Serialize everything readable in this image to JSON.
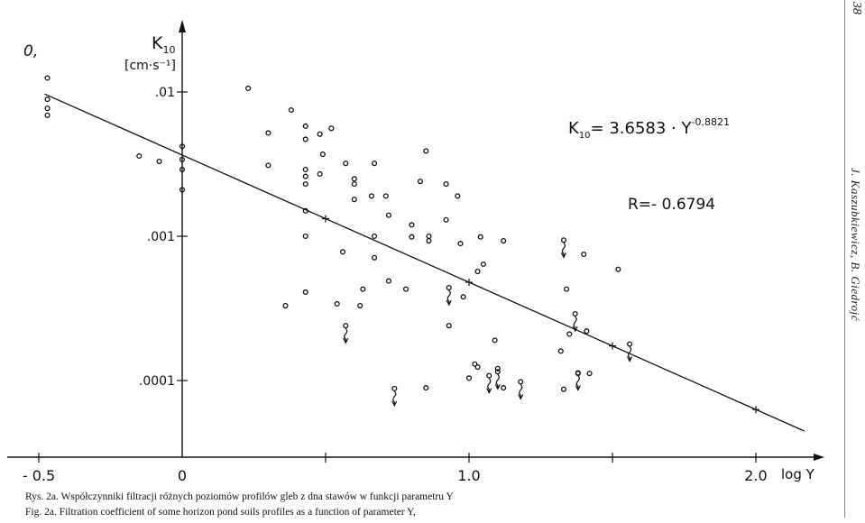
{
  "page": {
    "corner_mark": "0,",
    "page_number": "38",
    "running_head": "J. Kaszubkiewicz, B. Giedrojć"
  },
  "caption": {
    "polish": "Rys. 2a. Współczynniki filtracji różnych poziomów profilów gleb z dna stawów w funkcji parametru Y",
    "english": "Fig. 2a. Filtration coefficient of some horizon pond soils profiles as a function of parameter Y,"
  },
  "chart_data": {
    "type": "scatter",
    "title": "",
    "xlabel": "log Y",
    "ylabel_main": "K",
    "ylabel_sub": "10",
    "ylabel_unit": "[cm·s⁻¹]",
    "x_scale": "linear (log Y)",
    "y_scale": "log",
    "xlim": [
      -0.52,
      2.17
    ],
    "ylim_log10": [
      -4.9,
      -1.55
    ],
    "x_ticks": [
      {
        "value": -0.5,
        "label": "- 0.5"
      },
      {
        "value": 0,
        "label": "0"
      },
      {
        "value": 0.5,
        "label": ""
      },
      {
        "value": 1.0,
        "label": "1.0"
      },
      {
        "value": 1.5,
        "label": ""
      },
      {
        "value": 2.0,
        "label": "2.0"
      }
    ],
    "y_ticks": [
      {
        "log10": -2,
        "label": ".01"
      },
      {
        "log10": -3,
        "label": ".001"
      },
      {
        "log10": -4,
        "label": ".0001"
      }
    ],
    "grid": false,
    "legend": "none",
    "equation": {
      "base": "K",
      "sub": "10",
      "body": "= 3.6583 · Y",
      "exponent": "-0.8821"
    },
    "correlation": "R=- 0.6794",
    "regression_line": {
      "intercept_log10": -2.437,
      "slope": -0.8821,
      "x_from": -0.48,
      "x_to": 2.17
    },
    "line_markers_x": [
      0.5,
      1.0,
      1.5,
      2.0
    ],
    "points": [
      {
        "x": -0.47,
        "y": 0.0125
      },
      {
        "x": -0.47,
        "y": 0.0089
      },
      {
        "x": -0.47,
        "y": 0.0077
      },
      {
        "x": -0.47,
        "y": 0.0069
      },
      {
        "x": -0.15,
        "y": 0.0036
      },
      {
        "x": -0.08,
        "y": 0.0033
      },
      {
        "x": 0,
        "y": 0.0042
      },
      {
        "x": 0,
        "y": 0.0034
      },
      {
        "x": 0,
        "y": 0.0029
      },
      {
        "x": 0,
        "y": 0.0021
      },
      {
        "x": 0.23,
        "y": 0.0106
      },
      {
        "x": 0.3,
        "y": 0.0052
      },
      {
        "x": 0.3,
        "y": 0.0031
      },
      {
        "x": 0.38,
        "y": 0.0075
      },
      {
        "x": 0.43,
        "y": 0.0058
      },
      {
        "x": 0.43,
        "y": 0.0047
      },
      {
        "x": 0.43,
        "y": 0.0029
      },
      {
        "x": 0.43,
        "y": 0.0026
      },
      {
        "x": 0.43,
        "y": 0.0023
      },
      {
        "x": 0.43,
        "y": 0.0015
      },
      {
        "x": 0.43,
        "y": 0.001
      },
      {
        "x": 0.43,
        "y": 0.00041
      },
      {
        "x": 0.48,
        "y": 0.0051
      },
      {
        "x": 0.48,
        "y": 0.0027
      },
      {
        "x": 0.49,
        "y": 0.0037
      },
      {
        "x": 0.52,
        "y": 0.0056
      },
      {
        "x": 0.57,
        "y": 0.0032
      },
      {
        "x": 0.6,
        "y": 0.0025
      },
      {
        "x": 0.6,
        "y": 0.0023
      },
      {
        "x": 0.6,
        "y": 0.0018
      },
      {
        "x": 0.56,
        "y": 0.00078
      },
      {
        "x": 0.54,
        "y": 0.00034
      },
      {
        "x": 0.36,
        "y": 0.00033
      },
      {
        "x": 0.62,
        "y": 0.00033
      },
      {
        "x": 0.63,
        "y": 0.00043
      },
      {
        "x": 0.67,
        "y": 0.0032
      },
      {
        "x": 0.66,
        "y": 0.0019
      },
      {
        "x": 0.67,
        "y": 0.001
      },
      {
        "x": 0.67,
        "y": 0.00071
      },
      {
        "x": 0.71,
        "y": 0.0019
      },
      {
        "x": 0.72,
        "y": 0.0014
      },
      {
        "x": 0.72,
        "y": 0.00049
      },
      {
        "x": 0.78,
        "y": 0.00043
      },
      {
        "x": 0.8,
        "y": 0.0012
      },
      {
        "x": 0.8,
        "y": 0.00099
      },
      {
        "x": 0.83,
        "y": 0.0024
      },
      {
        "x": 0.85,
        "y": 0.0039
      },
      {
        "x": 0.86,
        "y": 0.001
      },
      {
        "x": 0.86,
        "y": 0.00093
      },
      {
        "x": 0.92,
        "y": 0.0023
      },
      {
        "x": 0.92,
        "y": 0.0013
      },
      {
        "x": 0.96,
        "y": 0.0019
      },
      {
        "x": 0.97,
        "y": 0.00089
      },
      {
        "x": 0.98,
        "y": 0.00038
      },
      {
        "x": 0.93,
        "y": 0.00024
      },
      {
        "x": 1.03,
        "y": 0.00057
      },
      {
        "x": 1.05,
        "y": 0.00064
      },
      {
        "x": 1.04,
        "y": 0.00099
      },
      {
        "x": 1.12,
        "y": 0.00093
      },
      {
        "x": 1.09,
        "y": 0.00019
      },
      {
        "x": 1.0,
        "y": 0.000104
      },
      {
        "x": 1.02,
        "y": 0.00013
      },
      {
        "x": 1.03,
        "y": 0.000124
      },
      {
        "x": 0.85,
        "y": 8.9e-05
      },
      {
        "x": 1.1,
        "y": 0.000121
      },
      {
        "x": 1.12,
        "y": 8.9e-05
      },
      {
        "x": 1.34,
        "y": 0.00043
      },
      {
        "x": 1.35,
        "y": 0.00021
      },
      {
        "x": 1.32,
        "y": 0.00016
      },
      {
        "x": 1.41,
        "y": 0.00022
      },
      {
        "x": 1.38,
        "y": 0.000112
      },
      {
        "x": 1.42,
        "y": 0.000112
      },
      {
        "x": 1.4,
        "y": 0.00075
      },
      {
        "x": 1.52,
        "y": 0.00059
      },
      {
        "x": 1.33,
        "y": 8.7e-05
      }
    ],
    "censored_points_arrow_down": [
      {
        "x": 0.74,
        "y": 8.8e-05
      },
      {
        "x": 0.57,
        "y": 0.00024
      },
      {
        "x": 0.93,
        "y": 0.00044
      },
      {
        "x": 1.07,
        "y": 0.000108
      },
      {
        "x": 1.1,
        "y": 0.000115
      },
      {
        "x": 1.18,
        "y": 9.8e-05
      },
      {
        "x": 1.33,
        "y": 0.00094
      },
      {
        "x": 1.37,
        "y": 0.00029
      },
      {
        "x": 1.38,
        "y": 0.000113
      },
      {
        "x": 1.56,
        "y": 0.000179
      }
    ]
  }
}
